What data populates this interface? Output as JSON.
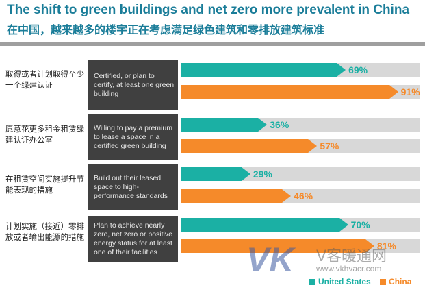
{
  "title_en": "The shift to green buildings and net zero more prevalent in China",
  "title_zh": "在中国，越来越多的楼宇正在考虑满足绿色建筑和零排放建筑标准",
  "watermark": {
    "logo": "VK",
    "text_zh": "V客暖通网",
    "url": "www.vkhvacr.com"
  },
  "chart_data": {
    "type": "bar",
    "orientation": "horizontal",
    "xlim": [
      0,
      100
    ],
    "categories_zh": [
      "取得或者计划取得至少一个绿建认证",
      "愿意花更多租金租赁绿建认证办公室",
      "在租赁空间实施提升节能表现的措施",
      "计划实施（接近）零排放或者输出能源的措施"
    ],
    "categories_en": [
      "Certified, or plan to certify, at least one green building",
      "Willing to pay a premium to lease a space in a certified green building",
      "Build out their leased space to high-performance standards",
      "Plan to achieve nearly zero, net zero or positive energy status for at least one of their facilities"
    ],
    "series": [
      {
        "name": "United States",
        "color": "#1bb0a4",
        "values": [
          69,
          36,
          29,
          70
        ],
        "labels": [
          "69%",
          "36%",
          "29%",
          "70%"
        ]
      },
      {
        "name": "China",
        "color": "#f58a2a",
        "values": [
          91,
          57,
          46,
          81
        ],
        "labels": [
          "91%",
          "57%",
          "46%",
          "81%"
        ]
      }
    ],
    "legend_position": "bottom-right"
  }
}
